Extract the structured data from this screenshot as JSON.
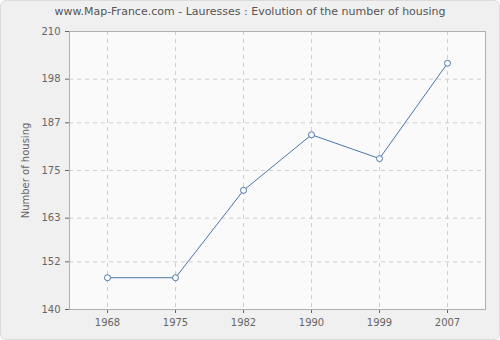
{
  "chart_data": {
    "type": "line",
    "title": "www.Map-France.com - Lauresses : Evolution of the number of housing",
    "y_label": "Number of housing",
    "categories": [
      "1968",
      "1975",
      "1982",
      "1990",
      "1999",
      "2007"
    ],
    "values": [
      148,
      148,
      170,
      184,
      178,
      202
    ],
    "color": "#4a76a8",
    "marker": "circle",
    "ylim": [
      140,
      210
    ],
    "yticks": [
      140,
      152,
      163,
      175,
      187,
      198,
      210
    ],
    "grid": true
  }
}
